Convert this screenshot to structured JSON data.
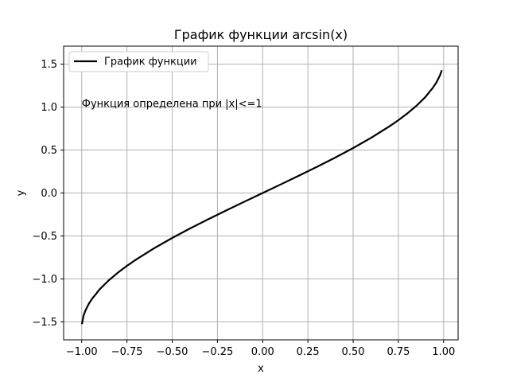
{
  "chart_data": {
    "type": "line",
    "title": "График функции arcsin(x)",
    "xlabel": "x",
    "ylabel": "y",
    "xlim": [
      -1.1,
      1.08
    ],
    "ylim": [
      -1.71,
      1.71
    ],
    "xticks": [
      -1.0,
      -0.75,
      -0.5,
      -0.25,
      0.0,
      0.25,
      0.5,
      0.75,
      1.0
    ],
    "xtick_labels": [
      "−1.00",
      "−0.75",
      "−0.50",
      "−0.25",
      "0.00",
      "0.25",
      "0.50",
      "0.75",
      "1.00"
    ],
    "yticks": [
      -1.5,
      -1.0,
      -0.5,
      0.0,
      0.5,
      1.0,
      1.5
    ],
    "ytick_labels": [
      "−1.5",
      "−1.0",
      "−0.5",
      "0.0",
      "0.5",
      "1.0",
      "1.5"
    ],
    "grid": true,
    "legend_position": "top-left",
    "series": [
      {
        "name": "График функции",
        "color": "#000000",
        "function": "arcsin",
        "x": [
          -0.999,
          -0.99,
          -0.98,
          -0.96,
          -0.94,
          -0.92,
          -0.9,
          -0.85,
          -0.8,
          -0.75,
          -0.7,
          -0.6,
          -0.5,
          -0.4,
          -0.3,
          -0.2,
          -0.1,
          0.0,
          0.1,
          0.2,
          0.3,
          0.4,
          0.5,
          0.6,
          0.7,
          0.75,
          0.8,
          0.85,
          0.9,
          0.92,
          0.94,
          0.96,
          0.98,
          0.99
        ],
        "y": [
          -1.5261,
          -1.4293,
          -1.3705,
          -1.287,
          -1.2239,
          -1.1731,
          -1.1198,
          -1.016,
          -0.9273,
          -0.8481,
          -0.7754,
          -0.6435,
          -0.5236,
          -0.4115,
          -0.3047,
          -0.2014,
          -0.1002,
          0.0,
          0.1002,
          0.2014,
          0.3047,
          0.4115,
          0.5236,
          0.6435,
          0.7754,
          0.8481,
          0.9273,
          1.016,
          1.1198,
          1.1731,
          1.2239,
          1.287,
          1.3705,
          1.4293
        ]
      }
    ],
    "annotations": [
      {
        "text": "Функция определена при |x|<=1",
        "x": -1.0,
        "y": 1.0
      }
    ]
  }
}
